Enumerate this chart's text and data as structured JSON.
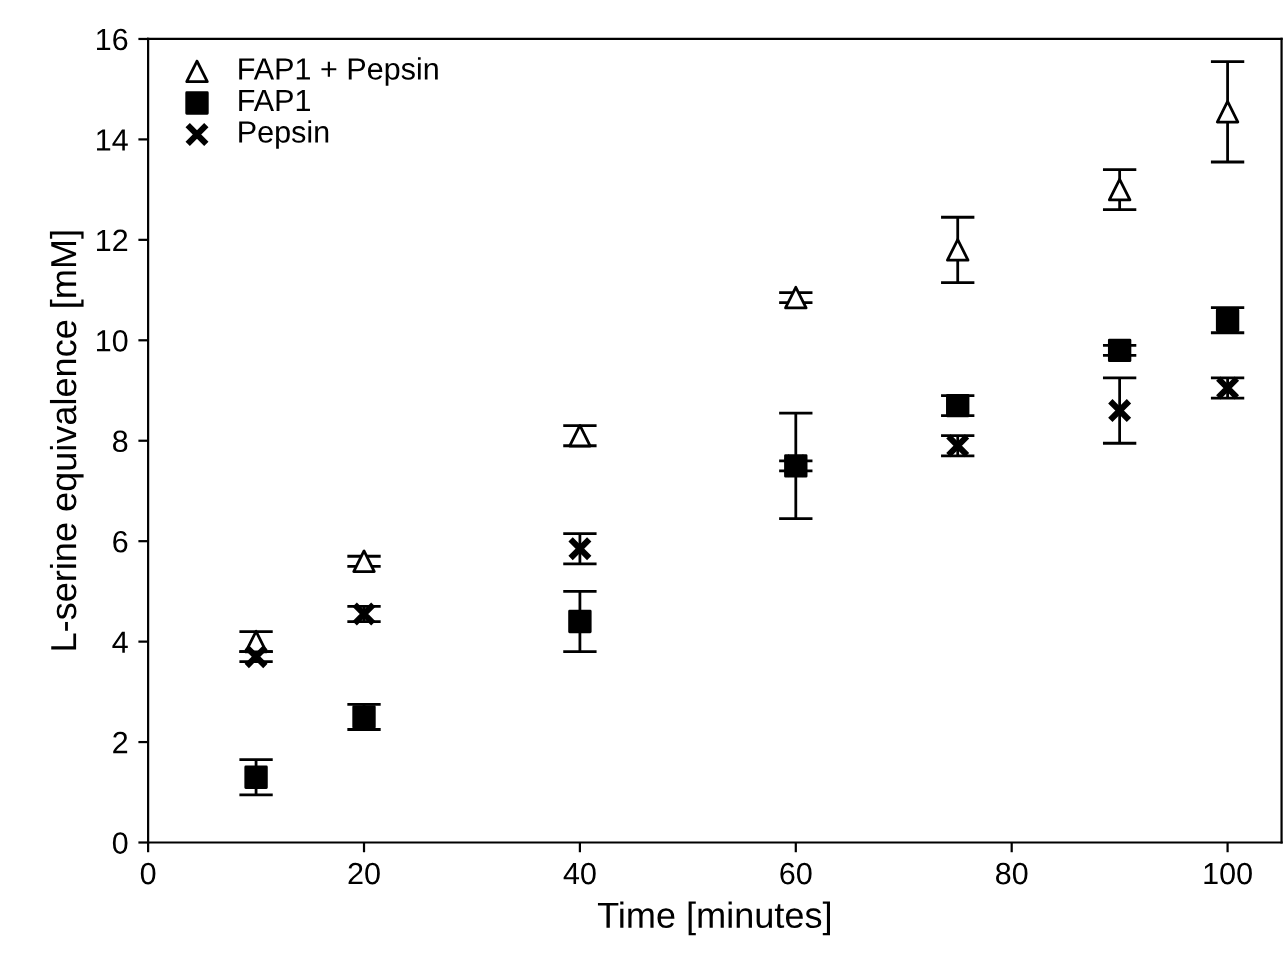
{
  "chart_data": {
    "type": "scatter",
    "xlabel": "Time [minutes]",
    "ylabel": "L-serine equivalence [mM]",
    "xlim": [
      0,
      105
    ],
    "xticks": [
      0,
      20,
      40,
      60,
      80,
      100
    ],
    "ylim": [
      0,
      16
    ],
    "yticks": [
      0,
      2,
      4,
      6,
      8,
      10,
      12,
      14,
      16
    ],
    "grid": false,
    "legend": "top left",
    "x": [
      10,
      20,
      40,
      60,
      75,
      90,
      100
    ],
    "series": [
      {
        "name": "FAP1 + Pepsin",
        "color": "#000000",
        "marker": "triangle",
        "values": [
          4.0,
          5.6,
          8.1,
          10.85,
          11.8,
          13.0,
          14.55
        ],
        "errors": [
          0.2,
          0.1,
          0.2,
          0.1,
          0.65,
          0.4,
          1.0
        ]
      },
      {
        "name": "FAP1",
        "color": "#000000",
        "marker": "square",
        "values": [
          1.3,
          2.5,
          4.4,
          7.5,
          8.7,
          9.8,
          10.4
        ],
        "errors": [
          0.35,
          0.25,
          0.6,
          0.1,
          0.2,
          0.1,
          0.25
        ]
      },
      {
        "name": "Pepsin",
        "color": "#000000",
        "marker": "cross",
        "values": [
          3.7,
          4.55,
          5.85,
          7.5,
          7.9,
          8.6,
          9.05
        ],
        "errors": [
          0.1,
          0.15,
          0.3,
          1.05,
          0.2,
          0.65,
          0.2
        ]
      }
    ]
  }
}
